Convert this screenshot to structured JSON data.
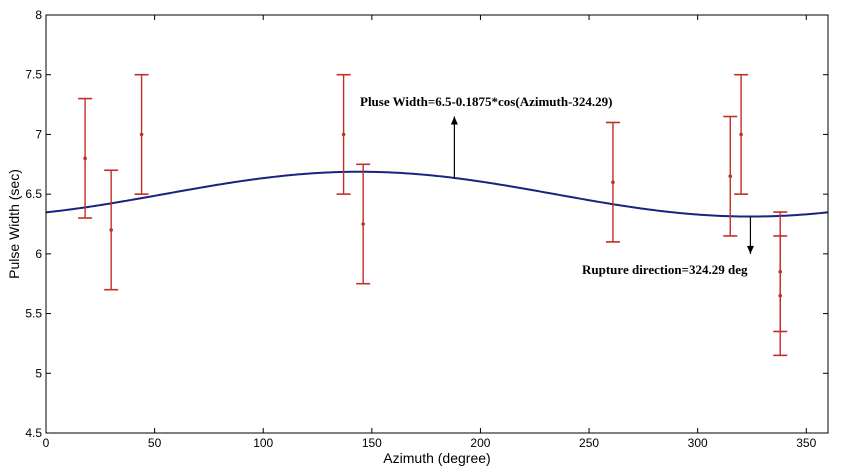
{
  "chart_data": {
    "type": "scatter",
    "xlabel": "Azimuth  (degree)",
    "ylabel": "Pulse Width (sec)",
    "xlim": [
      0,
      360
    ],
    "ylim": [
      4.5,
      8
    ],
    "x_ticks": [
      0,
      50,
      100,
      150,
      200,
      250,
      300,
      350
    ],
    "y_ticks": [
      4.5,
      5,
      5.5,
      6,
      6.5,
      7,
      7.5,
      8
    ],
    "x_tick_labels": [
      "0",
      "50",
      "100",
      "150",
      "200",
      "250",
      "300",
      "350"
    ],
    "y_tick_labels": [
      "4.5",
      "5",
      "5.5",
      "6",
      "6.5",
      "7",
      "7.5",
      "8"
    ],
    "grid": false,
    "colors": {
      "observed": "#c0302a",
      "fit": "#1a237e",
      "axis": "#000000"
    },
    "series": [
      {
        "marker": "point-with-errorbar",
        "points": [
          {
            "x": 18,
            "y": 6.8,
            "err": 0.5
          },
          {
            "x": 30,
            "y": 6.2,
            "err": 0.5
          },
          {
            "x": 44,
            "y": 7.0,
            "err": 0.5
          },
          {
            "x": 137,
            "y": 7.0,
            "err": 0.5
          },
          {
            "x": 146,
            "y": 6.25,
            "err": 0.5
          },
          {
            "x": 261,
            "y": 6.6,
            "err": 0.5
          },
          {
            "x": 315,
            "y": 6.65,
            "err": 0.5
          },
          {
            "x": 320,
            "y": 7.0,
            "err": 0.5
          },
          {
            "x": 338,
            "y": 5.85,
            "err": 0.5
          },
          {
            "x": 338,
            "y": 5.65,
            "err": 0.5
          }
        ]
      },
      {
        "type": "line",
        "function": "6.5-0.1875*cos(Azimuth-324.29)",
        "mean": 6.5,
        "amplitude": 0.1875,
        "phase_deg": 324.29
      }
    ],
    "annotations": [
      {
        "text": "Pluse Width=6.5-0.1875*cos(Azimuth-324.29)",
        "arrow_x": 188,
        "arrow_from_y": 6.63,
        "arrow_to_y": 7.15,
        "arrow": "up"
      },
      {
        "text": "Rupture direction=324.29 deg",
        "arrow_x": 324.29,
        "arrow_from_y": 6.31,
        "arrow_to_y": 6.0,
        "arrow": "down"
      }
    ]
  }
}
